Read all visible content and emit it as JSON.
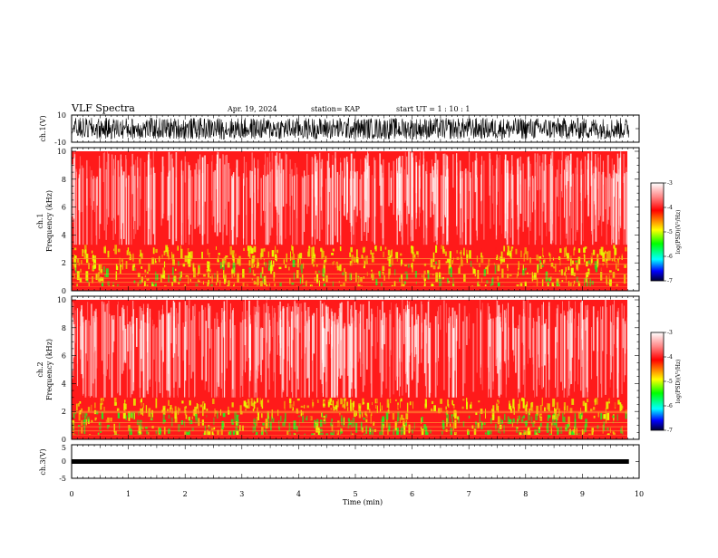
{
  "header": {
    "title": "VLF Spectra",
    "date": "Apr. 19, 2024",
    "station": "station= KAP",
    "start_ut": "start  UT  =   1 : 10 : 1"
  },
  "colors": {
    "spectrum_bg": "#ff1a1a",
    "speckle": "#ffffff",
    "low_band": "#e8ff00",
    "low_band_green": "#22ee22",
    "line_orange": "#ff9933",
    "trace": "#000000"
  },
  "colorbar": {
    "ticks": [
      "-3",
      "-4",
      "-5",
      "-6",
      "-7"
    ],
    "label": "log(PSD)(V²/Hz)",
    "stops": [
      "#ffffff",
      "#ff0000",
      "#ffff00",
      "#00ff00",
      "#00ffff",
      "#0000ff",
      "#000033"
    ]
  },
  "chart_data": [
    {
      "type": "line",
      "name": "ch.1 waveform",
      "ylabel": "ch.1(V)",
      "ylim": [
        -10,
        10
      ],
      "ytick_labels": [
        "10",
        "-10"
      ],
      "xlim": [
        0,
        10
      ],
      "x_max_data": 9.82,
      "description_range_v": [
        -8,
        8
      ]
    },
    {
      "type": "heatmap",
      "name": "ch.1 spectrogram",
      "ylabel": "ch.1",
      "ylabel2": "Frequency  (kHz)",
      "ylim": [
        0,
        10
      ],
      "ytick_labels": [
        "0",
        "2",
        "4",
        "6",
        "8",
        "10"
      ],
      "xlim": [
        0,
        10
      ],
      "x_max_data": 9.82,
      "bands_khz": {
        "strong_low": [
          0.3,
          3.3
        ],
        "lines": [
          0.3,
          0.6,
          0.9,
          1.2,
          1.9,
          2.3
        ]
      },
      "clim": [
        -7,
        -3
      ]
    },
    {
      "type": "heatmap",
      "name": "ch.2 spectrogram",
      "ylabel": "ch.2",
      "ylabel2": "Frequency  (kHz)",
      "ylim": [
        0,
        10
      ],
      "ytick_labels": [
        "0",
        "2",
        "4",
        "6",
        "8",
        "10"
      ],
      "xlim": [
        0,
        10
      ],
      "x_max_data": 9.82,
      "bands_khz": {
        "strong_low": [
          0.3,
          3.0
        ],
        "lines": [
          0.3,
          0.6,
          0.9,
          1.2,
          1.9,
          2.0
        ]
      },
      "clim": [
        -7,
        -3
      ]
    },
    {
      "type": "line",
      "name": "ch.3 waveform",
      "ylabel": "ch.3(V)",
      "ylim": [
        -5,
        5
      ],
      "ytick_labels": [
        "5",
        "0",
        "-5"
      ],
      "xlim": [
        0,
        10
      ],
      "x_max_data": 9.82,
      "level_v": 0
    }
  ],
  "xaxis": {
    "label": "Time  (min)",
    "ticks": [
      "0",
      "1",
      "2",
      "3",
      "4",
      "5",
      "6",
      "7",
      "8",
      "9",
      "10"
    ],
    "range": [
      0,
      10
    ]
  }
}
